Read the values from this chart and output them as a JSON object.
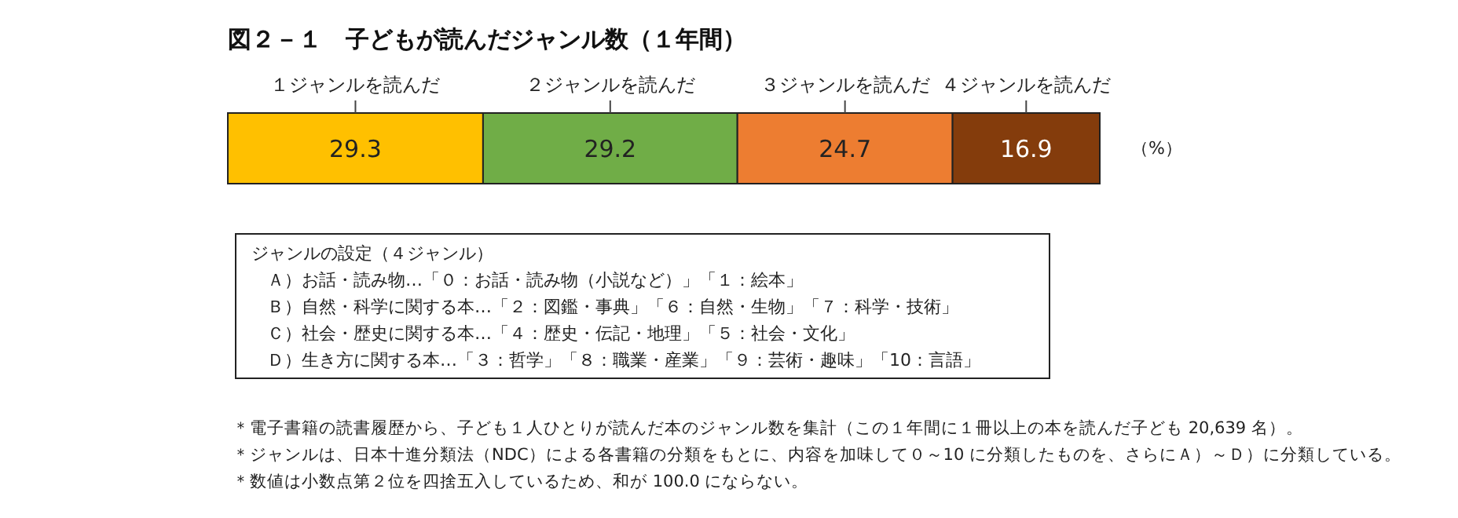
{
  "chart_data": {
    "type": "bar",
    "orientation": "horizontal",
    "stacked": true,
    "data_labels": true,
    "title": "図２－１　子どもが読んだジャンル数（１年間）",
    "categories": [
      null
    ],
    "series": [
      {
        "name": "１ジャンルを読んだ",
        "color": "#ffc000",
        "values": [
          29.3
        ]
      },
      {
        "name": "２ジャンルを読んだ",
        "color": "#70ad47",
        "values": [
          29.2
        ]
      },
      {
        "name": "３ジャンルを読んだ",
        "color": "#ed7d31",
        "values": [
          24.7
        ]
      },
      {
        "name": "４ジャンルを読んだ",
        "color": "#843c0c",
        "values": [
          16.9
        ]
      }
    ],
    "annotations": [
      "（%）",
      "ジャンルの設定（４ジャンル）",
      "Ａ）お話・読み物…「０：お話・読み物（小説など）」「１：絵本」",
      "Ｂ）自然・科学に関する本…「２：図鑑・事典」「６：自然・生物」「７：科学・技術」",
      "Ｃ）社会・歴史に関する本…「４：歴史・伝記・地理」「５：社会・文化」",
      "Ｄ）生き方に関する本…「３：哲学」「８：職業・産業」「９：芸術・趣味」「10：言語」",
      "＊電子書籍の読書履歴から、子ども１人ひとりが読んだ本のジャンル数を集計（この１年間に１冊以上の本を読んだ子ども 20,639 名）。",
      "＊ジャンルは、日本十進分類法（NDC）による各書籍の分類をもとに、内容を加味して０～10 に分類したものを、さらにＡ）～Ｄ）に分類している。",
      "＊数値は小数点第２位を四捨五入しているため、和が 100.0 にならない。"
    ]
  }
}
